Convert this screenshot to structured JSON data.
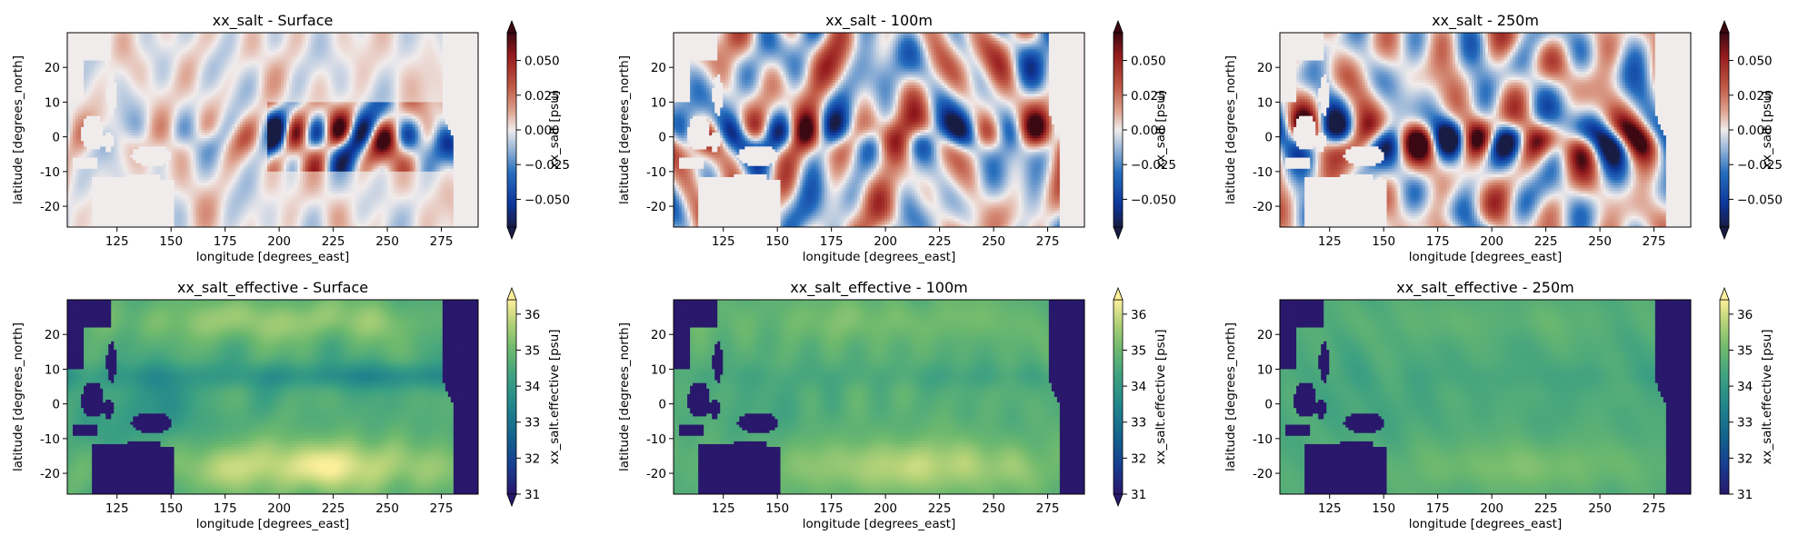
{
  "chart_data": [
    {
      "type": "heatmap",
      "title": "xx_salt - Surface",
      "xlabel": "longitude [degrees_east]",
      "ylabel": "latitude [degrees_north]",
      "xlim": [
        102,
        292
      ],
      "ylim": [
        -26,
        30
      ],
      "xticks": [
        125,
        150,
        175,
        200,
        225,
        250,
        275
      ],
      "yticks": [
        -20,
        -10,
        0,
        10,
        20
      ],
      "colorbar": {
        "label": "xx_salt [psu]",
        "ticks": [
          "0.050",
          "0.025",
          "0.000",
          "−0.025",
          "−0.050"
        ],
        "tick_values": [
          0.05,
          0.025,
          0,
          -0.025,
          -0.05
        ],
        "vmin": -0.07,
        "vmax": 0.07,
        "cmap": "balance",
        "extend": "both"
      },
      "field": {
        "amplitude": 0.55,
        "ocean_mask_all": true
      }
    },
    {
      "type": "heatmap",
      "title": "xx_salt - 100m",
      "xlabel": "longitude [degrees_east]",
      "ylabel": "latitude [degrees_north]",
      "xlim": [
        102,
        292
      ],
      "ylim": [
        -26,
        30
      ],
      "xticks": [
        125,
        150,
        175,
        200,
        225,
        250,
        275
      ],
      "yticks": [
        -20,
        -10,
        0,
        10,
        20
      ],
      "colorbar": {
        "label": "xx_salt [psu]",
        "ticks": [
          "0.050",
          "0.025",
          "0.000",
          "−0.025",
          "−0.050"
        ],
        "tick_values": [
          0.05,
          0.025,
          0,
          -0.025,
          -0.05
        ],
        "vmin": -0.07,
        "vmax": 0.07,
        "cmap": "balance",
        "extend": "both"
      },
      "field": {
        "amplitude": 1.0
      }
    },
    {
      "type": "heatmap",
      "title": "xx_salt - 250m",
      "xlabel": "longitude [degrees_east]",
      "ylabel": "latitude [degrees_north]",
      "xlim": [
        102,
        292
      ],
      "ylim": [
        -26,
        30
      ],
      "xticks": [
        125,
        150,
        175,
        200,
        225,
        250,
        275
      ],
      "yticks": [
        -20,
        -10,
        0,
        10,
        20
      ],
      "colorbar": {
        "label": "xx_salt [psu]",
        "ticks": [
          "0.050",
          "0.025",
          "0.000",
          "−0.025",
          "−0.050"
        ],
        "tick_values": [
          0.05,
          0.025,
          0,
          -0.025,
          -0.05
        ],
        "vmin": -0.07,
        "vmax": 0.07,
        "cmap": "balance",
        "extend": "both"
      },
      "field": {
        "amplitude": 0.9
      }
    },
    {
      "type": "heatmap",
      "title": "xx_salt_effective - Surface",
      "xlabel": "longitude [degrees_east]",
      "ylabel": "latitude [degrees_north]",
      "xlim": [
        102,
        292
      ],
      "ylim": [
        -26,
        30
      ],
      "xticks": [
        125,
        150,
        175,
        200,
        225,
        250,
        275
      ],
      "yticks": [
        -20,
        -10,
        0,
        10,
        20
      ],
      "colorbar": {
        "label": "xx_salt.effective [psu]",
        "ticks": [
          "36",
          "35",
          "34",
          "33",
          "32",
          "31"
        ],
        "tick_values": [
          36,
          35,
          34,
          33,
          32,
          31
        ],
        "vmin": 31,
        "vmax": 36.4,
        "cmap": "haline",
        "extend": "both"
      },
      "field": {
        "depth": "surface"
      }
    },
    {
      "type": "heatmap",
      "title": "xx_salt_effective - 100m",
      "xlabel": "longitude [degrees_east]",
      "ylabel": "latitude [degrees_north]",
      "xlim": [
        102,
        292
      ],
      "ylim": [
        -26,
        30
      ],
      "xticks": [
        125,
        150,
        175,
        200,
        225,
        250,
        275
      ],
      "yticks": [
        -20,
        -10,
        0,
        10,
        20
      ],
      "colorbar": {
        "label": "xx_salt.effective [psu]",
        "ticks": [
          "36",
          "35",
          "34",
          "33",
          "32",
          "31"
        ],
        "tick_values": [
          36,
          35,
          34,
          33,
          32,
          31
        ],
        "vmin": 31,
        "vmax": 36.4,
        "cmap": "haline",
        "extend": "both"
      },
      "field": {
        "depth": "100m"
      }
    },
    {
      "type": "heatmap",
      "title": "xx_salt_effective - 250m",
      "xlabel": "longitude [degrees_east]",
      "ylabel": "latitude [degrees_north]",
      "xlim": [
        102,
        292
      ],
      "ylim": [
        -26,
        30
      ],
      "xticks": [
        125,
        150,
        175,
        200,
        225,
        250,
        275
      ],
      "yticks": [
        -20,
        -10,
        0,
        10,
        20
      ],
      "colorbar": {
        "label": "xx_salt.effective [psu]",
        "ticks": [
          "36",
          "35",
          "34",
          "33",
          "32",
          "31"
        ],
        "tick_values": [
          36,
          35,
          34,
          33,
          32,
          31
        ],
        "vmin": 31,
        "vmax": 36.4,
        "cmap": "haline",
        "extend": "max"
      },
      "field": {
        "depth": "250m"
      }
    }
  ]
}
